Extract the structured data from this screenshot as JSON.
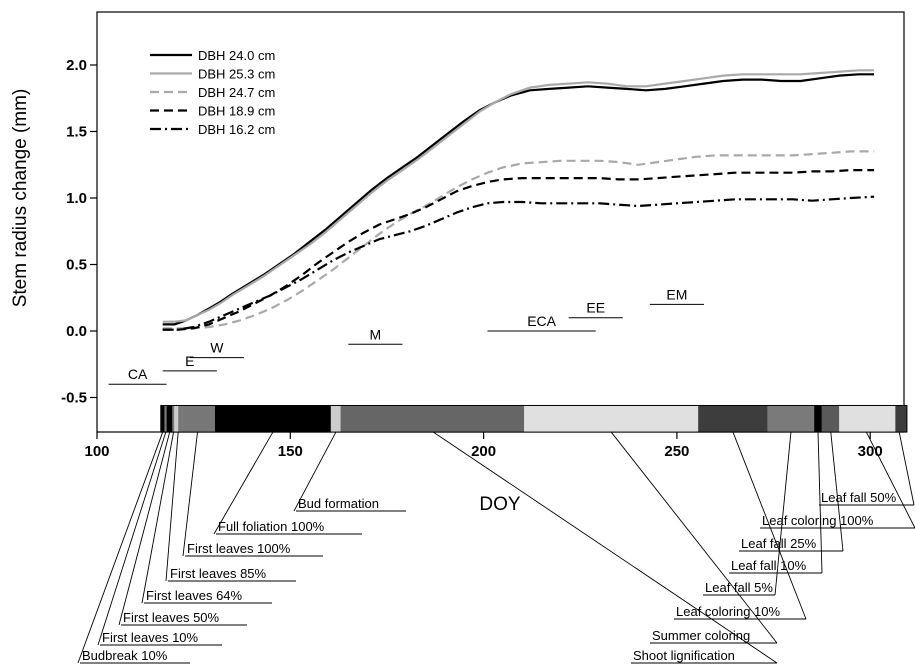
{
  "chart_data": {
    "type": "line",
    "title": "",
    "xlabel": "DOY",
    "ylabel": "Stem radius change (mm)",
    "xlim": [
      100,
      310
    ],
    "ylim": [
      -0.75,
      2.45
    ],
    "xticks": [
      100,
      150,
      200,
      250,
      300
    ],
    "xtick_labels": [
      "100",
      "150",
      "200",
      "250",
      "300"
    ],
    "yticks": [
      -0.5,
      0.0,
      0.5,
      1.0,
      1.5,
      2.0
    ],
    "ytick_labels": [
      "-0.5",
      "0.0",
      "0.5",
      "1.0",
      "1.5",
      "2.0"
    ],
    "grid": false,
    "legend_position": "top-left",
    "series": [
      {
        "name": "DBH 24.0 cm",
        "color": "#000000",
        "style": "solid",
        "x": [
          117,
          120,
          123,
          126,
          129,
          132,
          135,
          139,
          143,
          147,
          151,
          155,
          159,
          163,
          167,
          171,
          175,
          179,
          183,
          187,
          191,
          195,
          199,
          203,
          207,
          212,
          217,
          222,
          227,
          232,
          237,
          242,
          247,
          252,
          257,
          262,
          267,
          272,
          277,
          282,
          287,
          292,
          297,
          301
        ],
        "y": [
          0.05,
          0.05,
          0.08,
          0.12,
          0.17,
          0.22,
          0.28,
          0.35,
          0.42,
          0.5,
          0.58,
          0.67,
          0.76,
          0.86,
          0.96,
          1.06,
          1.15,
          1.23,
          1.31,
          1.4,
          1.49,
          1.58,
          1.66,
          1.72,
          1.77,
          1.81,
          1.82,
          1.83,
          1.84,
          1.83,
          1.82,
          1.81,
          1.82,
          1.84,
          1.86,
          1.88,
          1.89,
          1.89,
          1.88,
          1.88,
          1.9,
          1.92,
          1.93,
          1.93
        ]
      },
      {
        "name": "DBH 25.3 cm",
        "color": "#a9a9a9",
        "style": "solid",
        "x": [
          117,
          120,
          123,
          126,
          129,
          132,
          135,
          139,
          143,
          147,
          151,
          155,
          159,
          163,
          167,
          171,
          175,
          179,
          183,
          187,
          191,
          195,
          199,
          203,
          207,
          212,
          217,
          222,
          227,
          232,
          237,
          242,
          247,
          252,
          257,
          262,
          267,
          272,
          277,
          282,
          287,
          292,
          297,
          301
        ],
        "y": [
          0.07,
          0.07,
          0.08,
          0.12,
          0.16,
          0.21,
          0.27,
          0.34,
          0.41,
          0.49,
          0.57,
          0.65,
          0.74,
          0.84,
          0.94,
          1.04,
          1.13,
          1.21,
          1.29,
          1.38,
          1.47,
          1.56,
          1.65,
          1.72,
          1.78,
          1.83,
          1.85,
          1.86,
          1.87,
          1.86,
          1.84,
          1.84,
          1.86,
          1.88,
          1.9,
          1.92,
          1.93,
          1.93,
          1.93,
          1.93,
          1.94,
          1.95,
          1.96,
          1.96
        ]
      },
      {
        "name": "DBH 24.7 cm",
        "color": "#a9a9a9",
        "style": "dashed",
        "x": [
          117,
          121,
          125,
          129,
          133,
          137,
          141,
          145,
          149,
          153,
          157,
          161,
          165,
          169,
          173,
          177,
          181,
          185,
          189,
          193,
          197,
          201,
          205,
          210,
          215,
          220,
          225,
          230,
          235,
          240,
          245,
          250,
          255,
          260,
          265,
          270,
          275,
          280,
          285,
          290,
          295,
          301
        ],
        "y": [
          0.02,
          0.02,
          0.02,
          0.03,
          0.05,
          0.08,
          0.12,
          0.17,
          0.23,
          0.3,
          0.38,
          0.46,
          0.55,
          0.64,
          0.73,
          0.81,
          0.88,
          0.94,
          1.01,
          1.08,
          1.14,
          1.19,
          1.23,
          1.26,
          1.27,
          1.28,
          1.28,
          1.28,
          1.27,
          1.25,
          1.27,
          1.29,
          1.31,
          1.32,
          1.32,
          1.32,
          1.32,
          1.32,
          1.33,
          1.34,
          1.35,
          1.35
        ]
      },
      {
        "name": "DBH 18.9 cm",
        "color": "#000000",
        "style": "dashed",
        "x": [
          117,
          121,
          125,
          129,
          133,
          137,
          141,
          145,
          149,
          153,
          157,
          161,
          165,
          169,
          173,
          177,
          181,
          185,
          189,
          193,
          197,
          201,
          205,
          210,
          215,
          220,
          225,
          230,
          235,
          240,
          245,
          250,
          255,
          260,
          265,
          270,
          275,
          280,
          285,
          290,
          295,
          301
        ],
        "y": [
          0.01,
          0.01,
          0.02,
          0.05,
          0.1,
          0.15,
          0.21,
          0.27,
          0.34,
          0.42,
          0.51,
          0.59,
          0.67,
          0.74,
          0.8,
          0.84,
          0.88,
          0.93,
          0.99,
          1.05,
          1.09,
          1.12,
          1.14,
          1.15,
          1.15,
          1.15,
          1.15,
          1.15,
          1.14,
          1.14,
          1.15,
          1.16,
          1.17,
          1.18,
          1.19,
          1.19,
          1.19,
          1.19,
          1.2,
          1.2,
          1.21,
          1.21
        ]
      },
      {
        "name": "DBH 16.2 cm",
        "color": "#000000",
        "style": "dashdot",
        "x": [
          117,
          121,
          125,
          129,
          133,
          137,
          141,
          145,
          149,
          153,
          157,
          161,
          165,
          169,
          173,
          177,
          181,
          185,
          189,
          193,
          197,
          201,
          205,
          210,
          215,
          220,
          225,
          230,
          235,
          240,
          245,
          250,
          255,
          260,
          265,
          270,
          275,
          280,
          285,
          290,
          295,
          301
        ],
        "y": [
          0.01,
          0.01,
          0.03,
          0.07,
          0.12,
          0.17,
          0.22,
          0.27,
          0.33,
          0.39,
          0.46,
          0.53,
          0.59,
          0.64,
          0.69,
          0.72,
          0.75,
          0.79,
          0.84,
          0.89,
          0.93,
          0.96,
          0.97,
          0.97,
          0.96,
          0.96,
          0.96,
          0.96,
          0.95,
          0.94,
          0.95,
          0.96,
          0.97,
          0.98,
          0.99,
          0.99,
          0.99,
          0.99,
          0.98,
          0.99,
          1.0,
          1.01
        ]
      }
    ],
    "phase_bars": [
      {
        "label": "CA",
        "x_start": 103,
        "x_end": 118,
        "y": -0.4
      },
      {
        "label": "E",
        "x_start": 117,
        "x_end": 131,
        "y": -0.3
      },
      {
        "label": "W",
        "x_start": 124,
        "x_end": 138,
        "y": -0.2
      },
      {
        "label": "M",
        "x_start": 165,
        "x_end": 179,
        "y": -0.1
      },
      {
        "label": "ECA",
        "x_start": 201,
        "x_end": 229,
        "y": 0.0
      },
      {
        "label": "EE",
        "x_start": 222,
        "x_end": 236,
        "y": 0.1
      },
      {
        "label": "EM",
        "x_start": 243,
        "x_end": 257,
        "y": 0.2
      }
    ],
    "phenology_bar": {
      "y_top": -0.56,
      "y_bottom": -0.76,
      "segments": [
        {
          "start": 116.5,
          "end": 117.5,
          "color": "#000000"
        },
        {
          "start": 117.5,
          "end": 118.0,
          "color": "#777777"
        },
        {
          "start": 118.0,
          "end": 119.5,
          "color": "#000000"
        },
        {
          "start": 119.5,
          "end": 120.0,
          "color": "#777777"
        },
        {
          "start": 120.0,
          "end": 121.0,
          "color": "#cccccc"
        },
        {
          "start": 121.0,
          "end": 122.0,
          "color": "#777777"
        },
        {
          "start": 122.0,
          "end": 130.5,
          "color": "#777777"
        },
        {
          "start": 130.5,
          "end": 160.5,
          "color": "#000000"
        },
        {
          "start": 160.5,
          "end": 163.0,
          "color": "#cccccc"
        },
        {
          "start": 163.0,
          "end": 210.5,
          "color": "#666666"
        },
        {
          "start": 210.5,
          "end": 255.5,
          "color": "#e0e0e0"
        },
        {
          "start": 255.5,
          "end": 273.5,
          "color": "#3d3d3d"
        },
        {
          "start": 273.5,
          "end": 285.5,
          "color": "#7a7a7a"
        },
        {
          "start": 285.5,
          "end": 287.5,
          "color": "#000000"
        },
        {
          "start": 287.5,
          "end": 292.0,
          "color": "#5a5a5a"
        },
        {
          "start": 292.0,
          "end": 306.5,
          "color": "#e0e0e0"
        },
        {
          "start": 306.5,
          "end": 309.5,
          "color": "#3d3d3d"
        }
      ]
    },
    "phenology_events": [
      {
        "label": "Budbreak 10%",
        "x": 117.0
      },
      {
        "label": "First leaves 10%",
        "x": 117.8
      },
      {
        "label": "First leaves 50%",
        "x": 118.8
      },
      {
        "label": "First leaves 64%",
        "x": 119.8
      },
      {
        "label": "First leaves 85%",
        "x": 121.0
      },
      {
        "label": "First leaves 100%",
        "x": 126.0
      },
      {
        "label": "Full foliation 100%",
        "x": 145.5
      },
      {
        "label": "Bud formation",
        "x": 161.8
      },
      {
        "label": "Shoot lignification",
        "x": 187.0
      },
      {
        "label": "Summer coloring",
        "x": 233.0
      },
      {
        "label": "Leaf coloring 10%",
        "x": 264.5
      },
      {
        "label": "Leaf fall 5%",
        "x": 279.5
      },
      {
        "label": "Leaf fall 10%",
        "x": 286.5
      },
      {
        "label": "Leaf fall 25%",
        "x": 289.8
      },
      {
        "label": "Leaf coloring 100%",
        "x": 299.0
      },
      {
        "label": "Leaf fall 50%",
        "x": 307.5
      }
    ]
  }
}
